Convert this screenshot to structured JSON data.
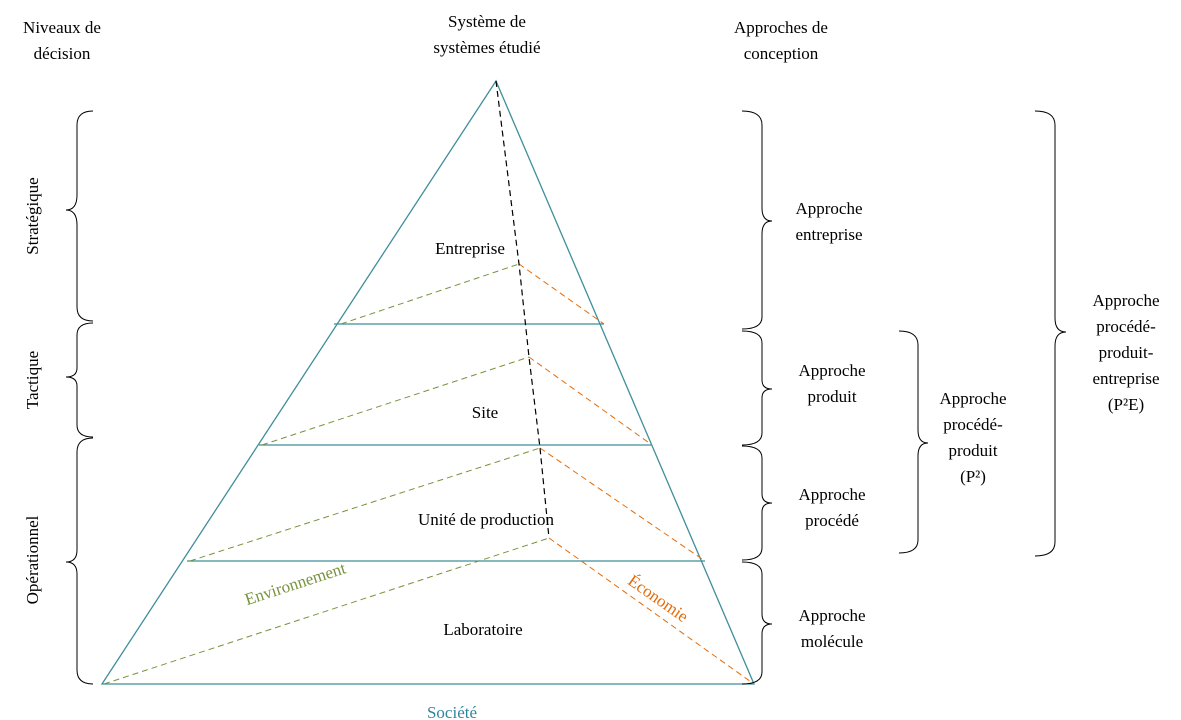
{
  "headers": {
    "levels": [
      "Niveaux de",
      "décision"
    ],
    "system": [
      "Système de",
      "systèmes étudié"
    ],
    "approaches": [
      "Approches de",
      "conception"
    ]
  },
  "decision_levels": {
    "strategic": "Stratégique",
    "tactical": "Tactique",
    "operational": "Opérationnel"
  },
  "pyramid_levels": {
    "enterprise": "Entreprise",
    "site": "Site",
    "production_unit": "Unité de production",
    "laboratory": "Laboratoire"
  },
  "dimensions": {
    "environment": "Environnement",
    "economy": "Économie",
    "society": "Société"
  },
  "approaches": {
    "enterprise": [
      "Approche",
      "entreprise"
    ],
    "product": [
      "Approche",
      "produit"
    ],
    "process": [
      "Approche",
      "procédé"
    ],
    "molecule": [
      "Approche",
      "molécule"
    ],
    "p2": [
      "Approche",
      "procédé-",
      "produit",
      "(P²)"
    ],
    "p2e": [
      "Approche",
      "procédé-",
      "produit-",
      "entreprise",
      "(P²E)"
    ]
  },
  "colors": {
    "pyramid": "#3f8e9a",
    "environment": "#77933c",
    "economy": "#e46c0a",
    "society": "#31859c"
  }
}
